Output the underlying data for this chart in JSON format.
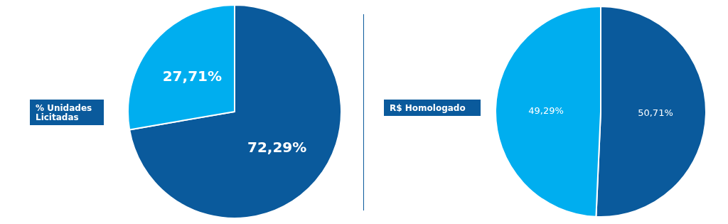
{
  "chart_data": [
    {
      "type": "pie",
      "title": "% Unidades Licitadas",
      "categories": [
        null,
        null
      ],
      "values": [
        72.29,
        27.71
      ],
      "colors": [
        "#0a5a9c",
        "#00aeef"
      ],
      "value_labels": [
        "72,29%",
        "27,71%"
      ],
      "legend": false
    },
    {
      "type": "pie",
      "title": "R$ Homologado",
      "categories": [
        null,
        null
      ],
      "values": [
        50.71,
        49.29
      ],
      "colors": [
        "#0a5a9c",
        "#00aeef"
      ],
      "value_labels": [
        "50,71%",
        "49,29%"
      ],
      "legend": false
    }
  ]
}
